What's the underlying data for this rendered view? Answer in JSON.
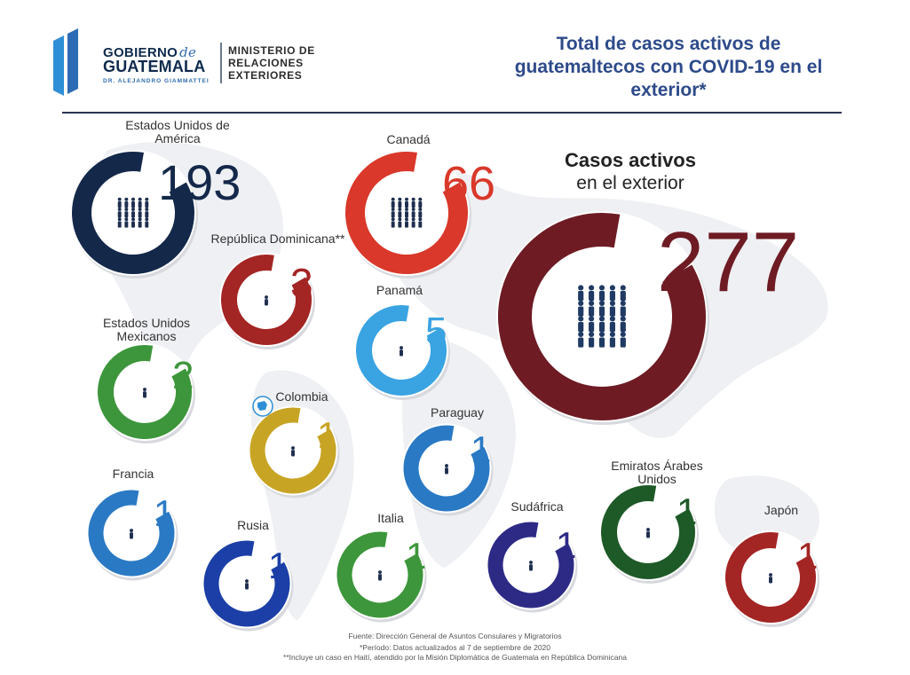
{
  "header": {
    "logo": {
      "line1": "GOBIERNO",
      "line1_de": "de",
      "line2": "GUATEMALA",
      "line3": "DR. ALEJANDRO GIAMMATTEI"
    },
    "ministry": {
      "line1": "MINISTERIO DE",
      "line2": "RELACIONES",
      "line3": "EXTERIORES"
    },
    "title": {
      "line1": "Total de casos activos de",
      "line2": "guatemaltecos con COVID-19 en el",
      "line3": "exterior*"
    },
    "colors": {
      "logo_blue": "#2e6cb3",
      "title": "#2d4a8a"
    }
  },
  "countries": [
    {
      "name_lines": [
        "Estados Unidos de",
        "América"
      ],
      "count": "193",
      "color": "#14284a",
      "people_icon": "people-group-icon"
    },
    {
      "name_lines": [
        "Canadá"
      ],
      "count": "66",
      "color": "#d9382a",
      "people_icon": "people-group-icon"
    },
    {
      "name_lines": [
        "República Dominicana**"
      ],
      "count": "3",
      "color": "#a32524",
      "people_icon": "person-icon"
    },
    {
      "name_lines": [
        "Panamá"
      ],
      "count": "5",
      "color": "#3aa3e2",
      "people_icon": "person-icon"
    },
    {
      "name_lines": [
        "Estados Unidos",
        "Mexicanos"
      ],
      "count": "2",
      "color": "#3d963b",
      "people_icon": "person-icon"
    },
    {
      "name_lines": [
        "Colombia"
      ],
      "count": "1",
      "color": "#c8a424",
      "people_icon": "person-icon"
    },
    {
      "name_lines": [
        "Paraguay"
      ],
      "count": "1",
      "color": "#2a79c4",
      "people_icon": "person-icon"
    },
    {
      "name_lines": [
        "Francia"
      ],
      "count": "1",
      "color": "#2a79c4",
      "people_icon": "person-icon"
    },
    {
      "name_lines": [
        "Rusia"
      ],
      "count": "1",
      "color": "#1b3fa6",
      "people_icon": "person-icon"
    },
    {
      "name_lines": [
        "Italia"
      ],
      "count": "1",
      "color": "#3d963b",
      "people_icon": "person-icon"
    },
    {
      "name_lines": [
        "Sudáfrica"
      ],
      "count": "1",
      "color": "#2d2a86",
      "people_icon": "person-icon"
    },
    {
      "name_lines": [
        "Emiratos Árabes",
        "Unidos"
      ],
      "count": "1",
      "color": "#1e5a27",
      "people_icon": "person-icon"
    },
    {
      "name_lines": [
        "Japón"
      ],
      "count": "1",
      "color": "#a32524",
      "people_icon": "person-icon"
    }
  ],
  "total": {
    "label_line1": "Casos activos",
    "label_line2": "en el exterior",
    "count": "277",
    "color": "#6e1b24",
    "people_icon": "people-group-icon"
  },
  "footnotes": {
    "source": "Fuente: Dirección General de Asuntos Consulares y Migratorios",
    "period": "*Período: Datos actualizados al 7 de septiembre de 2020",
    "note": "**Incluye un caso en Haití, atendido por la Misión Diplomática de Guatemala en República Dominicana"
  },
  "colors": {
    "map_gray": "#eceef1",
    "rule": "#2a3552"
  }
}
